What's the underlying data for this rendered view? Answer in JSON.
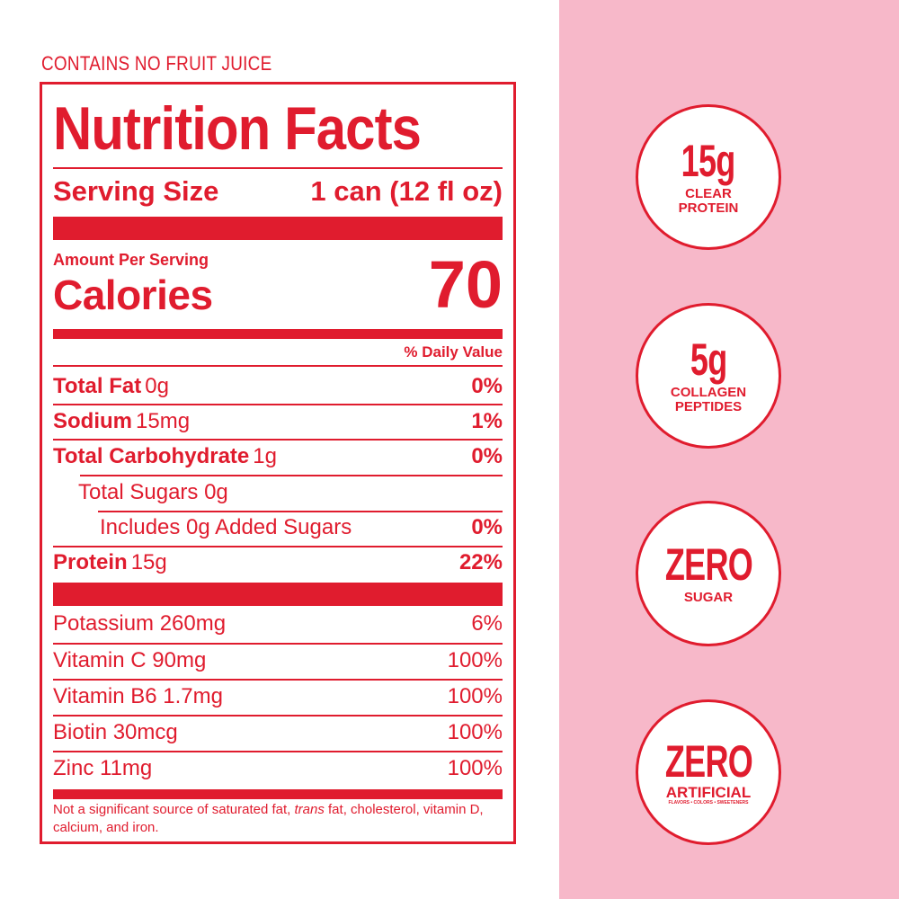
{
  "note": "CONTAINS NO FRUIT JUICE",
  "label": {
    "title": "Nutrition Facts",
    "serving_size_label": "Serving Size",
    "serving_size_value": "1 can (12 fl oz)",
    "amount_per_serving": "Amount Per Serving",
    "calories_label": "Calories",
    "calories_value": "70",
    "daily_value_header": "% Daily Value",
    "nutrients": [
      {
        "name": "Total Fat",
        "amount": "0g",
        "dv": "0%"
      },
      {
        "name": "Sodium",
        "amount": "15mg",
        "dv": "1%"
      },
      {
        "name": "Total Carbohydrate",
        "amount": "1g",
        "dv": "0%"
      },
      {
        "name": "Total Sugars 0g",
        "amount": "",
        "dv": ""
      },
      {
        "name": "Includes 0g Added Sugars",
        "amount": "",
        "dv": "0%"
      },
      {
        "name": "Protein",
        "amount": "15g",
        "dv": "22%"
      }
    ],
    "vitamins": [
      {
        "name": "Potassium 260mg",
        "dv": "6%"
      },
      {
        "name": "Vitamin C 90mg",
        "dv": "100%"
      },
      {
        "name": "Vitamin B6 1.7mg",
        "dv": "100%"
      },
      {
        "name": "Biotin 30mcg",
        "dv": "100%"
      },
      {
        "name": "Zinc 11mg",
        "dv": "100%"
      }
    ],
    "footnote_pre": "Not a significant source of saturated fat, ",
    "footnote_italic": "trans",
    "footnote_post": " fat, cholesterol, vitamin D, calcium, and iron."
  },
  "badges": [
    {
      "big": "15g",
      "small1": "CLEAR",
      "small2": "PROTEIN"
    },
    {
      "big": "5g",
      "small1": "COLLAGEN",
      "small2": "PEPTIDES"
    },
    {
      "big": "ZERO",
      "small1": "SUGAR",
      "small2": ""
    },
    {
      "big": "ZERO",
      "small1": "ARTIFICIAL",
      "small2": "FLAVORS • COLORS • SWEETENERS"
    }
  ],
  "colors": {
    "accent": "#e01c2e",
    "panel_pink": "#f7b8c9",
    "white": "#ffffff"
  }
}
